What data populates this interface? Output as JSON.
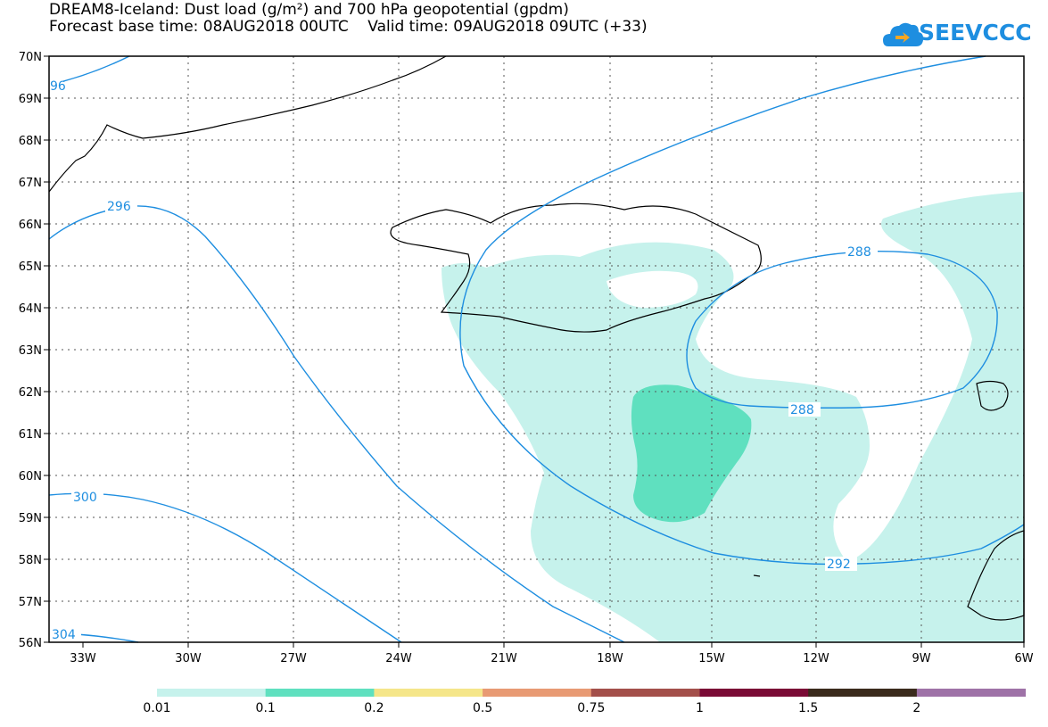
{
  "title_line1": "DREAM8-Iceland: Dust load (g/m²) and 700 hPa geopotential (gpdm)",
  "title_line2": "Forecast base time: 08AUG2018 00UTC    Valid time: 09AUG2018 09UTC (+33)",
  "logo_text": "SEEVCCC",
  "lat_labels": [
    "70N",
    "69N",
    "68N",
    "67N",
    "66N",
    "65N",
    "64N",
    "63N",
    "62N",
    "61N",
    "60N",
    "59N",
    "58N",
    "57N",
    "56N"
  ],
  "lon_labels": [
    "33W",
    "30W",
    "27W",
    "24W",
    "21W",
    "18W",
    "15W",
    "12W",
    "9W",
    "6W"
  ],
  "contour_labels": [
    "96",
    "296",
    "300",
    "304",
    "288",
    "288",
    "292"
  ],
  "colorbar": {
    "labels": [
      "0.01",
      "0.1",
      "0.2",
      "0.5",
      "0.75",
      "1",
      "1.5",
      "2"
    ],
    "colors": [
      "#c6f2ec",
      "#5fe0bf",
      "#f5e68a",
      "#e89a73",
      "#a34f4a",
      "#7a0a35",
      "#3a2a1c",
      "#9e72a7"
    ]
  },
  "colors": {
    "contour": "#1e8ee0",
    "dust_low": "#c6f2ec",
    "dust_mid": "#5fe0bf",
    "coast": "#000000"
  }
}
